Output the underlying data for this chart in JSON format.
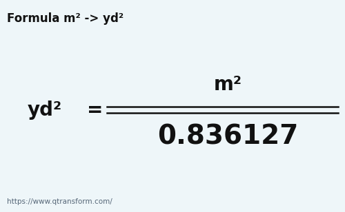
{
  "bg_color": "#eef6f9",
  "title_text": "Formula m² -> yd²",
  "unit_from": "m²",
  "unit_to": "yd²",
  "value": "0.836127",
  "url": "https://www.qtransform.com/",
  "title_fontsize": 12,
  "unit_from_fontsize": 20,
  "unit_to_fontsize": 20,
  "value_fontsize": 28,
  "url_fontsize": 7.5,
  "line_color": "#111111",
  "text_color": "#111111",
  "url_color": "#556677"
}
